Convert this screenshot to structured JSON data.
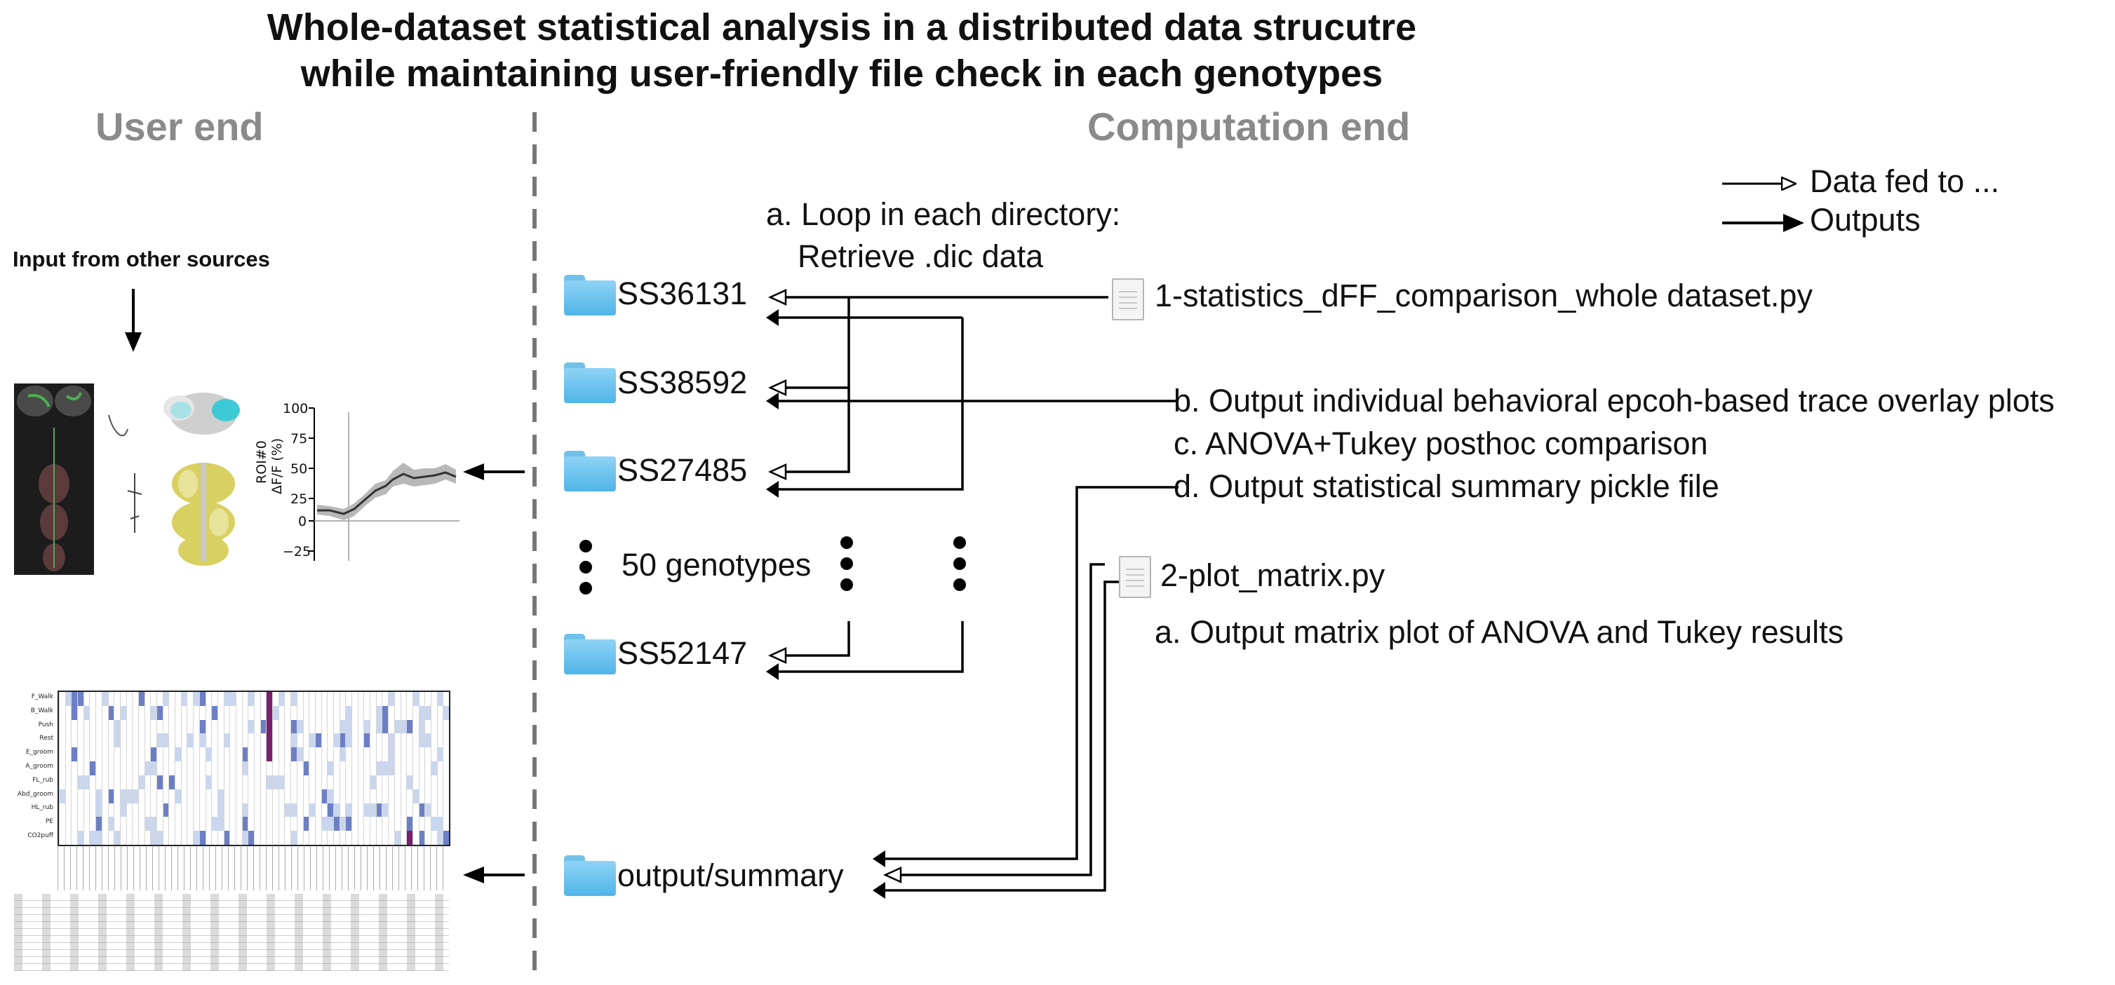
{
  "title": {
    "line1": "Whole-dataset statistical analysis in a distributed data strucutre",
    "line2": "while maintaining user-friendly file check in each genotypes"
  },
  "sections": {
    "user_end": "User end",
    "computation_end": "Computation end"
  },
  "legend": {
    "fed": "Data fed to ...",
    "outputs": "Outputs"
  },
  "input_label": "Input from other sources",
  "loop": {
    "line1": "a. Loop in each directory:",
    "line2": "Retrieve .dic data"
  },
  "folders": {
    "f1": "SS36131",
    "f2": "SS38592",
    "f3": "SS27485",
    "genotypes": "50 genotypes",
    "f4": "SS52147",
    "output": "output/summary"
  },
  "script1": {
    "name": "1-statistics_dFF_comparison_whole dataset.py",
    "b": "b. Output individual behavioral epcoh-based trace overlay plots",
    "c": "c. ANOVA+Tukey posthoc comparison",
    "d": "d. Output statistical summary pickle file"
  },
  "script2": {
    "name": "2-plot_matrix.py",
    "a": "a. Output matrix plot of ANOVA and Tukey results"
  },
  "trace_plot": {
    "ylabel_line1": "ROI#0",
    "ylabel_line2": "ΔF/F (%)",
    "yticks": [
      "100",
      "75",
      "50",
      "25",
      "0",
      "−25"
    ]
  },
  "heatmap": {
    "rows": [
      "F_Walk",
      "B_Walk",
      "Push",
      "Rest",
      "E_groom",
      "A_groom",
      "FL_rub",
      "Abd_groom",
      "HL_rub",
      "PE",
      "CO2puff"
    ]
  },
  "colors": {
    "folder": "#4fb5e8",
    "section_gray": "#8a8a8a",
    "heat_low": "#c9d6ee",
    "heat_mid": "#6d7fc4",
    "heat_high": "#7a1e6f",
    "brain_green": "#4caf50",
    "brain_yellow": "#d8d060",
    "brain_cyan": "#3ec9d6"
  },
  "icons": {
    "folder": "folder-icon",
    "script": "python-file-icon"
  }
}
